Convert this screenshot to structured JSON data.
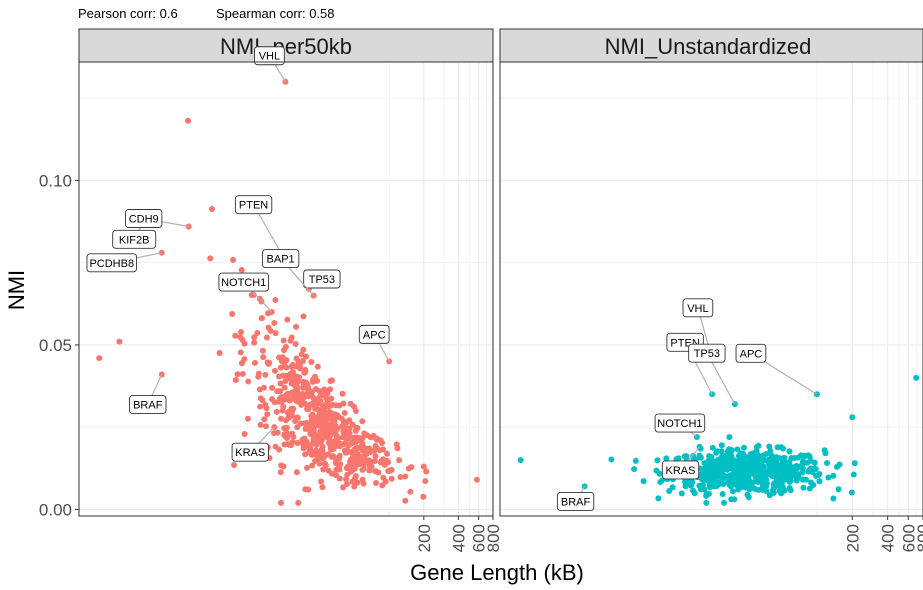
{
  "chart_data": {
    "type": "scatter",
    "annotation": {
      "pearson": "Pearson corr: 0.6",
      "spearman": "Spearman corr: 0.58"
    },
    "xlabel": "Gene Length (kB)",
    "ylabel": "NMI",
    "x_scale": "log",
    "xlim": [
      0.2,
      800
    ],
    "ylim": [
      -0.002,
      0.136
    ],
    "x_ticks": [
      200,
      400,
      600,
      800
    ],
    "x_tick_labels": [
      "200",
      "400",
      "600",
      "800"
    ],
    "y_ticks": [
      0.0,
      0.05,
      0.1
    ],
    "y_tick_labels": [
      "0.00",
      "0.05",
      "0.10"
    ],
    "grid": true,
    "legend": "none",
    "panels": [
      {
        "name": "NMI_per50kb",
        "color": "#F8766D",
        "labeled_points": [
          {
            "label": "VHL",
            "x": 12.5,
            "y": 0.13
          },
          {
            "label": "KIF2B",
            "x": 0.8,
            "y": 0.09
          },
          {
            "label": "CDH9",
            "x": 1.8,
            "y": 0.086
          },
          {
            "label": "PCDHB8",
            "x": 1.05,
            "y": 0.078
          },
          {
            "label": "PTEN",
            "x": 12.8,
            "y": 0.075
          },
          {
            "label": "TP53",
            "x": 20,
            "y": 0.067
          },
          {
            "label": "BAP1",
            "x": 22,
            "y": 0.065
          },
          {
            "label": "NOTCH1",
            "x": 9.5,
            "y": 0.06
          },
          {
            "label": "APC",
            "x": 100,
            "y": 0.045
          },
          {
            "label": "BRAF",
            "x": 1.05,
            "y": 0.041
          },
          {
            "label": "KRAS",
            "x": 10,
            "y": 0.025
          }
        ],
        "extra_points": [
          {
            "x": 200,
            "y": 0.013
          },
          {
            "x": 580,
            "y": 0.009
          },
          {
            "x": 0.3,
            "y": 0.046
          },
          {
            "x": 0.45,
            "y": 0.051
          }
        ]
      },
      {
        "name": "NMI_Unstandardized",
        "color": "#00BFC4",
        "labeled_points": [
          {
            "label": "VHL",
            "x": 12.5,
            "y": 0.047
          },
          {
            "label": "PTEN",
            "x": 12.8,
            "y": 0.035
          },
          {
            "label": "APC",
            "x": 100,
            "y": 0.035
          },
          {
            "label": "TP53",
            "x": 20,
            "y": 0.032
          },
          {
            "label": "NOTCH1",
            "x": 9.5,
            "y": 0.022
          },
          {
            "label": "KRAS",
            "x": 10,
            "y": 0.019
          },
          {
            "label": "BRAF",
            "x": 1.05,
            "y": 0.007
          }
        ],
        "extra_points": [
          {
            "x": 200,
            "y": 0.028
          },
          {
            "x": 700,
            "y": 0.04
          },
          {
            "x": 0.3,
            "y": 0.015
          }
        ]
      }
    ]
  }
}
